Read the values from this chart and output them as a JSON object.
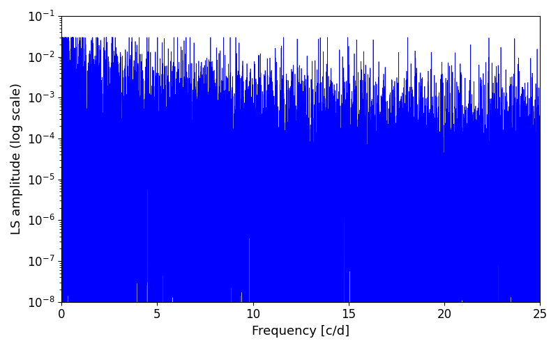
{
  "xlabel": "Frequency [c/d]",
  "ylabel": "LS amplitude (log scale)",
  "xlim": [
    0,
    25
  ],
  "ylim": [
    1e-08,
    0.1
  ],
  "line_color": "#0000ff",
  "line_width": 0.5,
  "background_color": "#ffffff",
  "freq_max": 25.0,
  "n_points": 8000,
  "seed": 7,
  "tick_label_fontsize": 12,
  "axis_label_fontsize": 13,
  "figsize": [
    8.0,
    5.0
  ],
  "dpi": 100
}
